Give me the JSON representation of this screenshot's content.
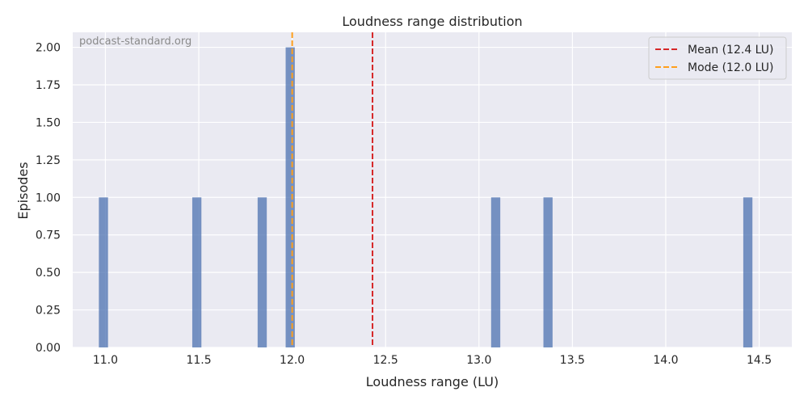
{
  "chart_data": {
    "type": "bar",
    "title": "Loudness range distribution",
    "xlabel": "Loudness range (LU)",
    "ylabel": "Episodes",
    "watermark": "podcast-standard.org",
    "xlim": [
      10.825,
      14.675
    ],
    "ylim": [
      0,
      2.1
    ],
    "xticks": [
      "11.0",
      "11.5",
      "12.0",
      "12.5",
      "13.0",
      "13.5",
      "14.0",
      "14.5"
    ],
    "yticks": [
      "0.00",
      "0.25",
      "0.50",
      "0.75",
      "1.00",
      "1.25",
      "1.50",
      "1.75",
      "2.00"
    ],
    "bin_width": 0.07,
    "bins": [
      {
        "x": 11.0,
        "count": 1
      },
      {
        "x": 11.5,
        "count": 1
      },
      {
        "x": 11.85,
        "count": 1
      },
      {
        "x": 12.0,
        "count": 2
      },
      {
        "x": 13.1,
        "count": 1
      },
      {
        "x": 13.38,
        "count": 1
      },
      {
        "x": 14.45,
        "count": 1
      }
    ],
    "bar_color": "#4c72b0",
    "lines": [
      {
        "name": "Mean (12.4 LU)",
        "x": 12.43,
        "color": "#d62728"
      },
      {
        "name": "Mode (12.0 LU)",
        "x": 12.0,
        "color": "#ff9f1c"
      }
    ],
    "legend_position": "top-right",
    "grid": true
  }
}
